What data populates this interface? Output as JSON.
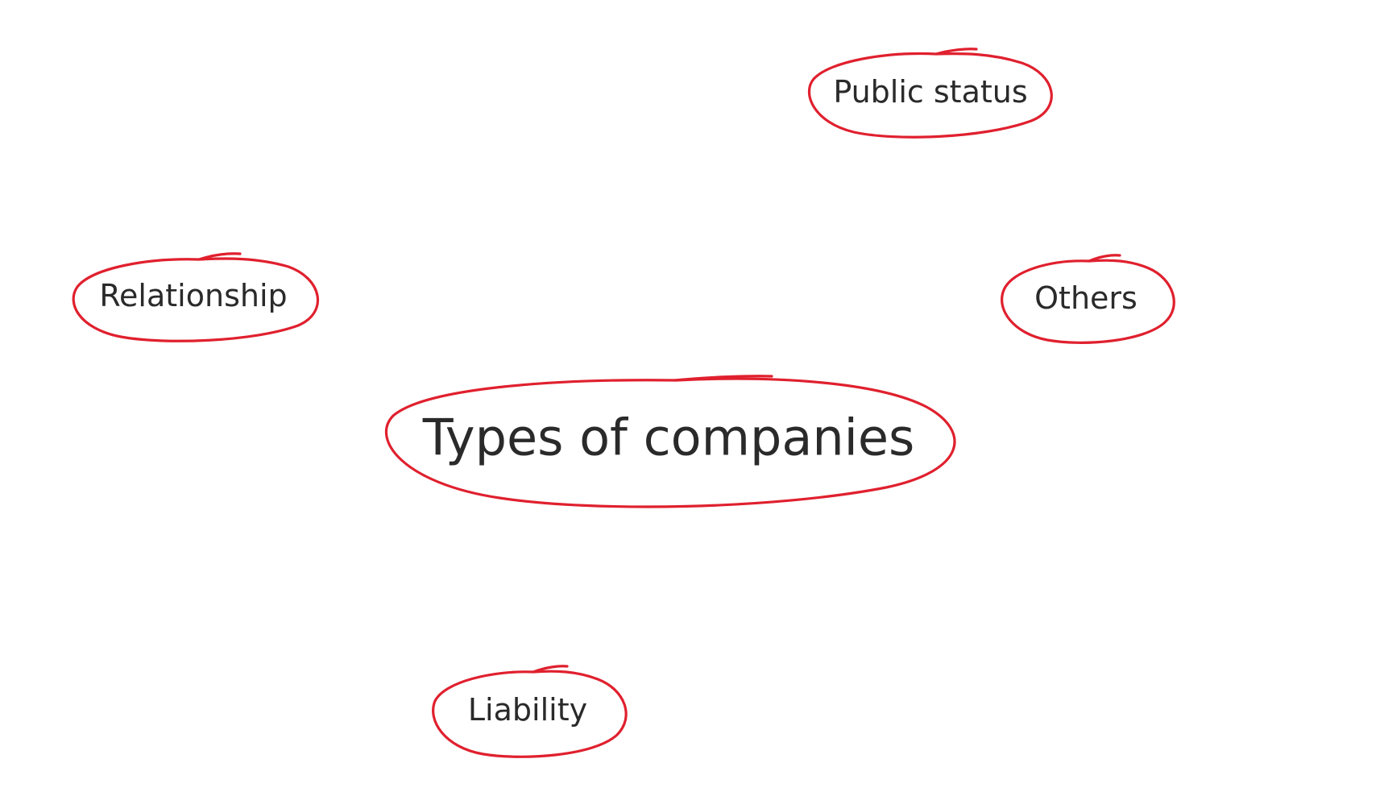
{
  "diagram": {
    "center": {
      "label": "Types of companies"
    },
    "nodes": [
      {
        "id": "public-status",
        "label": "Public status"
      },
      {
        "id": "relationship",
        "label": "Relationship"
      },
      {
        "id": "others",
        "label": "Others"
      },
      {
        "id": "liability",
        "label": "Liability"
      }
    ]
  },
  "colors": {
    "ring": "#e0202e",
    "text": "#2a2a2a",
    "background": "#ffffff"
  }
}
